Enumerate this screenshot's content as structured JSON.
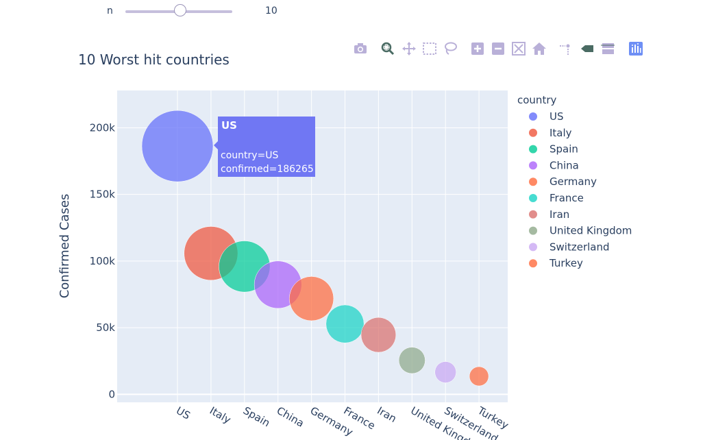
{
  "slider": {
    "label": "n",
    "value": "10",
    "fraction": 0.51
  },
  "modebar": {
    "icons": [
      "camera-icon",
      "zoom-icon",
      "pan-icon",
      "box-select-icon",
      "lasso-select-icon",
      "zoom-in-icon",
      "zoom-out-icon",
      "autoscale-icon",
      "reset-axes-icon",
      "spike-lines-icon",
      "hover-closest-icon",
      "hover-compare-icon",
      "plotly-logo-icon"
    ]
  },
  "chart_data": {
    "type": "scatter",
    "title": "10 Worst hit countries",
    "xlabel": "",
    "ylabel": "Confirmed Cases",
    "categories": [
      "US",
      "Italy",
      "Spain",
      "China",
      "Germany",
      "France",
      "Iran",
      "United Kingdom",
      "Switzerland",
      "Turkey"
    ],
    "y_ticks": [
      0,
      50000,
      100000,
      150000,
      200000
    ],
    "y_tick_labels": [
      "0",
      "50k",
      "100k",
      "150k",
      "200k"
    ],
    "ylim": [
      -6000,
      228000
    ],
    "grid": true,
    "legend": {
      "title": "country",
      "position": "right"
    },
    "series": [
      {
        "name": "US",
        "values": [
          186265
        ],
        "color": "#636efa"
      },
      {
        "name": "Italy",
        "values": [
          105792
        ],
        "color": "#ef553b"
      },
      {
        "name": "Spain",
        "values": [
          95923
        ],
        "color": "#00cc96"
      },
      {
        "name": "China",
        "values": [
          82279
        ],
        "color": "#ab63fa"
      },
      {
        "name": "Germany",
        "values": [
          71808
        ],
        "color": "#ff6b3d"
      },
      {
        "name": "France",
        "values": [
          52827
        ],
        "color": "#19d3c5"
      },
      {
        "name": "Iran",
        "values": [
          44605
        ],
        "color": "#d9706e"
      },
      {
        "name": "United Kingdom",
        "values": [
          25481
        ],
        "color": "#8fa98a"
      },
      {
        "name": "Switzerland",
        "values": [
          16605
        ],
        "color": "#c9a7f2"
      },
      {
        "name": "Turkey",
        "values": [
          13531
        ],
        "color": "#ff6b3d"
      }
    ],
    "hover": {
      "title": "US",
      "line1": "country=US",
      "line2": "confirmed=186265"
    }
  }
}
